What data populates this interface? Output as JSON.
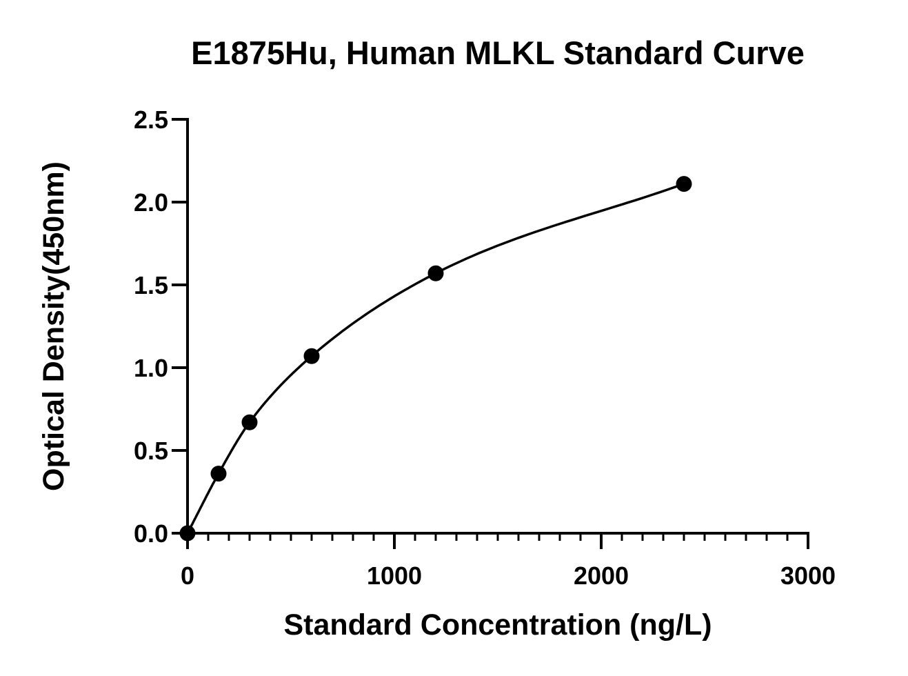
{
  "chart_data": {
    "type": "scatter",
    "title": "E1875Hu, Human MLKL Standard Curve",
    "xlabel": "Standard Concentration (ng/L)",
    "ylabel": "Optical Density(450nm)",
    "xlim": [
      0,
      3000
    ],
    "ylim": [
      0,
      2.5
    ],
    "x_ticks": [
      "0",
      "1000",
      "2000",
      "3000"
    ],
    "y_ticks": [
      "0.0",
      "0.5",
      "1.0",
      "1.5",
      "2.0",
      "2.5"
    ],
    "x_tick_values": [
      0,
      1000,
      2000,
      3000
    ],
    "y_tick_values": [
      0,
      0.5,
      1.0,
      1.5,
      2.0,
      2.5
    ],
    "x_minor_tick_step": 100,
    "y_minor_ticks": false,
    "grid": false,
    "legend": "none",
    "series": [
      {
        "x": [
          0,
          150,
          300,
          600,
          1200,
          2400
        ],
        "y": [
          0.0,
          0.36,
          0.67,
          1.07,
          1.57,
          2.11
        ],
        "marker": "filled-circle",
        "fit_curve": true,
        "color": "#000000"
      }
    ]
  }
}
